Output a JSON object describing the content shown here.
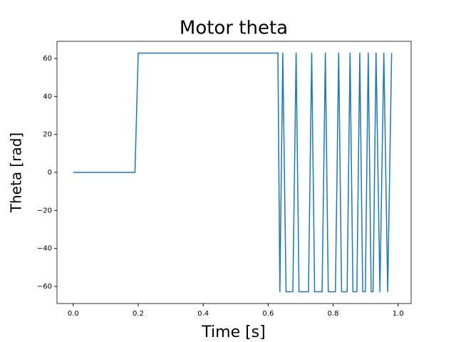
{
  "chart_data": {
    "type": "line",
    "title": "Motor theta",
    "xlabel": "Time [s]",
    "ylabel": "Theta [rad]",
    "color": "#1f77b4",
    "x": [
      0,
      0.19,
      0.2,
      0.63,
      0.636,
      0.645,
      0.655,
      0.676,
      0.686,
      0.695,
      0.724,
      0.734,
      0.743,
      0.766,
      0.776,
      0.785,
      0.807,
      0.817,
      0.826,
      0.843,
      0.852,
      0.861,
      0.873,
      0.882,
      0.891,
      0.899,
      0.908,
      0.917,
      0.923,
      0.932,
      0.944,
      0.956,
      0.968,
      0.98
    ],
    "values": [
      0,
      0,
      62.8,
      62.8,
      -62.8,
      62.8,
      -62.8,
      -62.8,
      62.8,
      -62.8,
      -62.8,
      62.8,
      -62.8,
      -62.8,
      62.8,
      -62.8,
      -62.8,
      62.8,
      -62.8,
      -62.8,
      62.8,
      -62.8,
      -62.8,
      62.8,
      -62.8,
      -62.8,
      62.8,
      -62.8,
      -62.8,
      62.8,
      -62.8,
      62.8,
      -62.8,
      62.8
    ],
    "xlim": [
      -0.05,
      1.04
    ],
    "ylim": [
      -69,
      69
    ],
    "xticks": [
      {
        "value": 0,
        "label": "0.0"
      },
      0.2,
      0.4,
      0.6,
      0.8,
      {
        "value": 1,
        "label": "1.0"
      }
    ],
    "yticks": [
      {
        "value": -60,
        "label": "−60"
      },
      {
        "value": -40,
        "label": "−40"
      },
      {
        "value": -20,
        "label": "−20"
      },
      0,
      20,
      40,
      60
    ],
    "grid": false
  }
}
